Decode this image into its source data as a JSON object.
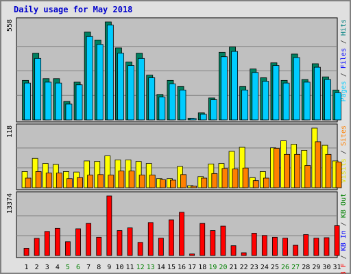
{
  "chart_data": {
    "title": "Daily usage for May 2018",
    "categories": [
      "1",
      "2",
      "3",
      "4",
      "5",
      "6",
      "7",
      "8",
      "9",
      "10",
      "11",
      "12",
      "13",
      "14",
      "15",
      "16",
      "17",
      "18",
      "19",
      "20",
      "21",
      "22",
      "23",
      "24",
      "25",
      "26",
      "27",
      "28",
      "29",
      "30",
      "31"
    ],
    "weekend_days": [
      "5",
      "6",
      "12",
      "13",
      "19",
      "20",
      "26",
      "27"
    ],
    "panels": [
      {
        "type": "bar",
        "max_label": "558",
        "ylim": [
          0,
          558
        ],
        "right_label_parts": [
          {
            "text": "Pages",
            "color": "#00ccff"
          },
          {
            "text": " / ",
            "color": "#333333"
          },
          {
            "text": "Files",
            "color": "#0000ff"
          },
          {
            "text": " / ",
            "color": "#333333"
          },
          {
            "text": "Hits",
            "color": "#008080"
          }
        ],
        "series": [
          {
            "name": "Hits",
            "color": "#008060",
            "values": [
              225,
              380,
              235,
              235,
              105,
              215,
              500,
              455,
              558,
              410,
              330,
              380,
              255,
              145,
              225,
              190,
              10,
              40,
              125,
              385,
              415,
              190,
              290,
              240,
              325,
              225,
              375,
              230,
              320,
              245,
              170
            ]
          },
          {
            "name": "Files",
            "color": "#00ccff",
            "values": [
              210,
              350,
              215,
              210,
              90,
              200,
              475,
              430,
              540,
              380,
              310,
              350,
              240,
              130,
              205,
              170,
              8,
              32,
              115,
              360,
              390,
              170,
              270,
              220,
              310,
              210,
              355,
              215,
              300,
              230,
              155
            ]
          }
        ]
      },
      {
        "type": "bar",
        "max_label": "118",
        "ylim": [
          0,
          118
        ],
        "right_label_parts": [
          {
            "text": "Visits",
            "color": "#e0e000"
          },
          {
            "text": " / ",
            "color": "#333333"
          },
          {
            "text": "Sites",
            "color": "#ff8000"
          }
        ],
        "series": [
          {
            "name": "Visits",
            "color": "#ffff00",
            "values": [
              32,
              58,
              48,
              46,
              32,
              31,
              53,
              52,
              63,
              55,
              55,
              52,
              48,
              18,
              18,
              42,
              4,
              22,
              47,
              48,
              72,
              80,
              20,
              32,
              79,
              93,
              86,
              74,
              118,
              84,
              53
            ]
          },
          {
            "name": "Sites",
            "color": "#ff8000",
            "values": [
              19,
              32,
              29,
              29,
              18,
              20,
              25,
              26,
              25,
              33,
              33,
              25,
              25,
              16,
              15,
              26,
              3,
              19,
              28,
              38,
              37,
              39,
              14,
              19,
              78,
              66,
              66,
              44,
              91,
              66,
              51
            ]
          }
        ]
      },
      {
        "type": "bar",
        "max_label": "13374",
        "ylim": [
          0,
          13374
        ],
        "right_label_parts": [
          {
            "text": "KB F",
            "color": "#ff0000"
          },
          {
            "text": " / ",
            "color": "#333333"
          },
          {
            "text": "KB In",
            "color": "#0000ff"
          },
          {
            "text": " / ",
            "color": "#333333"
          },
          {
            "text": "KB Out",
            "color": "#008000"
          }
        ],
        "series": [
          {
            "name": "KB F",
            "color": "#ff0000",
            "values": [
              1620,
              3850,
              5400,
              6100,
              3100,
              6000,
              7200,
              4100,
              13374,
              5600,
              6200,
              2950,
              7400,
              3900,
              8000,
              9700,
              350,
              7200,
              5600,
              6600,
              2200,
              620,
              5000,
              4500,
              4100,
              3900,
              2300,
              4700,
              3900,
              4000,
              6700
            ]
          }
        ]
      }
    ]
  }
}
